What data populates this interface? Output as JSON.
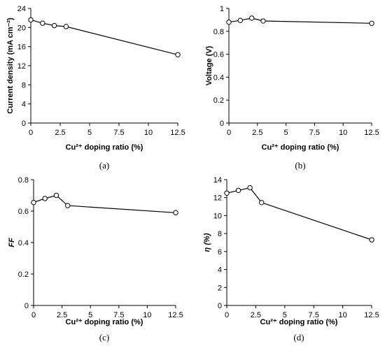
{
  "chart_data": [
    {
      "id": "a",
      "type": "line",
      "panel_label": "(a)",
      "xlabel": "Cu²⁺ doping ratio (%)",
      "ylabel": "Current density (mA cm⁻²)",
      "ylabel_italic": false,
      "x": [
        0,
        1,
        2,
        3,
        12.5
      ],
      "y": [
        21.6,
        20.9,
        20.4,
        20.2,
        14.3
      ],
      "xlim": [
        0,
        12.5
      ],
      "ylim": [
        0,
        24
      ],
      "xticks": [
        0,
        2.5,
        5,
        7.5,
        10,
        12.5
      ],
      "xtick_labels": [
        "0",
        "2.5",
        "5",
        "7.5",
        "10",
        "12.5"
      ],
      "yticks": [
        0,
        4,
        8,
        12,
        16,
        20,
        24
      ],
      "ytick_labels": [
        "0",
        "4",
        "8",
        "12",
        "16",
        "20",
        "24"
      ],
      "grid": false
    },
    {
      "id": "b",
      "type": "line",
      "panel_label": "(b)",
      "xlabel": "Cu²⁺ doping ratio (%)",
      "ylabel": "Voltage (V)",
      "ylabel_italic": false,
      "x": [
        0,
        1,
        2,
        3,
        12.5
      ],
      "y": [
        0.88,
        0.895,
        0.915,
        0.89,
        0.87
      ],
      "xlim": [
        0,
        12.5
      ],
      "ylim": [
        0,
        1
      ],
      "xticks": [
        0,
        2.5,
        5,
        7.5,
        10,
        12.5
      ],
      "xtick_labels": [
        "0",
        "2.5",
        "5",
        "7.5",
        "10",
        "12.5"
      ],
      "yticks": [
        0,
        0.2,
        0.4,
        0.6,
        0.8,
        1
      ],
      "ytick_labels": [
        "0",
        "0.2",
        "0.4",
        "0.6",
        "0.8",
        "1"
      ],
      "grid": false
    },
    {
      "id": "c",
      "type": "line",
      "panel_label": "(c)",
      "xlabel": "Cu²⁺ doping ratio (%)",
      "ylabel": "FF",
      "ylabel_italic": true,
      "x": [
        0,
        1,
        2,
        3,
        12.5
      ],
      "y": [
        0.655,
        0.68,
        0.7,
        0.635,
        0.59
      ],
      "xlim": [
        0,
        12.5
      ],
      "ylim": [
        0,
        0.8
      ],
      "xticks": [
        0,
        2.5,
        5,
        7.5,
        10,
        12.5
      ],
      "xtick_labels": [
        "0",
        "2.5",
        "5",
        "7.5",
        "10",
        "12.5"
      ],
      "yticks": [
        0,
        0.2,
        0.4,
        0.6,
        0.8
      ],
      "ytick_labels": [
        "0",
        "0.2",
        "0.4",
        "0.6",
        "0.8"
      ],
      "grid": false
    },
    {
      "id": "d",
      "type": "line",
      "panel_label": "(d)",
      "xlabel": "Cu²⁺ doping ratio (%)",
      "ylabel": "η (%)",
      "ylabel_italic": true,
      "x": [
        0,
        1,
        2,
        3,
        12.5
      ],
      "y": [
        12.5,
        12.8,
        13.1,
        11.45,
        7.3
      ],
      "xlim": [
        0,
        12.5
      ],
      "ylim": [
        0,
        14
      ],
      "xticks": [
        0,
        2.5,
        5,
        7.5,
        10,
        12.5
      ],
      "xtick_labels": [
        "0",
        "2.5",
        "5",
        "7.5",
        "10",
        "12.5"
      ],
      "yticks": [
        0,
        2,
        4,
        6,
        8,
        10,
        12,
        14
      ],
      "ytick_labels": [
        "0",
        "2",
        "4",
        "6",
        "8",
        "10",
        "12",
        "14"
      ],
      "grid": false
    }
  ]
}
